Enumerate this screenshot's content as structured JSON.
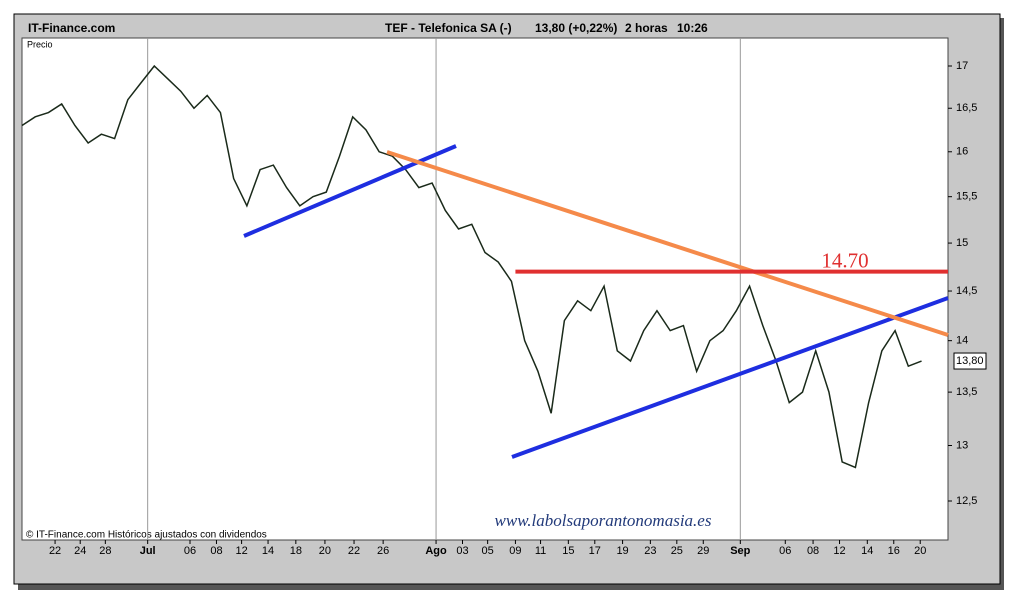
{
  "chart_data": {
    "type": "line",
    "header": {
      "source": "IT-Finance.com",
      "symbol": "TEF - Telefonica SA (-)",
      "quote": "13,80 (+0,22%)",
      "interval": "2 horas",
      "time": "10:26"
    },
    "y_label": "Precio",
    "footer": "© IT-Finance.com Históricos ajustados con dividendos",
    "watermark": "www.labolsaporantonomasia.es",
    "log_scale": true,
    "grid": "months",
    "xlim": [
      0,
      70
    ],
    "xticks": [
      {
        "value": 2.5,
        "label": "22"
      },
      {
        "value": 4.4,
        "label": "24"
      },
      {
        "value": 6.3,
        "label": "28"
      },
      {
        "value": 9.5,
        "label": "Jul"
      },
      {
        "value": 12.7,
        "label": "06"
      },
      {
        "value": 14.7,
        "label": "08"
      },
      {
        "value": 16.6,
        "label": "12"
      },
      {
        "value": 18.6,
        "label": "14"
      },
      {
        "value": 20.7,
        "label": "18"
      },
      {
        "value": 22.9,
        "label": "20"
      },
      {
        "value": 25.1,
        "label": "22"
      },
      {
        "value": 27.3,
        "label": "26"
      },
      {
        "value": 31.3,
        "label": "Ago"
      },
      {
        "value": 33.3,
        "label": "03"
      },
      {
        "value": 35.2,
        "label": "05"
      },
      {
        "value": 37.3,
        "label": "09"
      },
      {
        "value": 39.2,
        "label": "11"
      },
      {
        "value": 41.3,
        "label": "15"
      },
      {
        "value": 43.3,
        "label": "17"
      },
      {
        "value": 45.4,
        "label": "19"
      },
      {
        "value": 47.5,
        "label": "23"
      },
      {
        "value": 49.5,
        "label": "25"
      },
      {
        "value": 51.5,
        "label": "29"
      },
      {
        "value": 54.3,
        "label": "Sep"
      },
      {
        "value": 57.7,
        "label": "06"
      },
      {
        "value": 59.8,
        "label": "08"
      },
      {
        "value": 61.8,
        "label": "12"
      },
      {
        "value": 63.9,
        "label": "14"
      },
      {
        "value": 65.9,
        "label": "16"
      },
      {
        "value": 67.9,
        "label": "20"
      }
    ],
    "ylim": [
      12.16,
      17.34
    ],
    "yticks": [
      {
        "value": 12.5,
        "label": "12,5"
      },
      13,
      {
        "value": 13.5,
        "label": "13,5"
      },
      14,
      {
        "value": 14.5,
        "label": "14,5"
      },
      15,
      {
        "value": 15.5,
        "label": "15,5"
      },
      16,
      {
        "value": 16.5,
        "label": "16,5"
      },
      17
    ],
    "series": [
      {
        "name": "TEF",
        "color": "#1a2a1a",
        "x": [
          0,
          1,
          2,
          3,
          4,
          5,
          6,
          7,
          8,
          9,
          10,
          11,
          12,
          13,
          14,
          15,
          16,
          17,
          18,
          19,
          20,
          21,
          22,
          23,
          24,
          25,
          26,
          27,
          28,
          29,
          30,
          31,
          32,
          33,
          34,
          35,
          36,
          37,
          38,
          39,
          40,
          41,
          42,
          43,
          44,
          45,
          46,
          47,
          48,
          49,
          50,
          51,
          52,
          53,
          54,
          55,
          56,
          57,
          58,
          59,
          60,
          61,
          62,
          63,
          64,
          65,
          66,
          67,
          68
        ],
        "values": [
          16.3,
          16.4,
          16.45,
          16.55,
          16.3,
          16.1,
          16.2,
          16.15,
          16.6,
          16.8,
          17.0,
          16.85,
          16.7,
          16.5,
          16.65,
          16.45,
          15.7,
          15.4,
          15.8,
          15.85,
          15.6,
          15.4,
          15.5,
          15.55,
          15.95,
          16.4,
          16.25,
          16.0,
          15.95,
          15.8,
          15.6,
          15.65,
          15.35,
          15.15,
          15.2,
          14.9,
          14.8,
          14.6,
          14.0,
          13.7,
          13.3,
          14.2,
          14.4,
          14.3,
          14.55,
          13.9,
          13.8,
          14.1,
          14.3,
          14.1,
          14.15,
          13.7,
          14.0,
          14.1,
          14.3,
          14.55,
          14.15,
          13.8,
          13.4,
          13.5,
          13.9,
          13.5,
          12.85,
          12.8,
          13.4,
          13.9,
          14.1,
          13.75,
          13.8
        ]
      }
    ],
    "last_value": {
      "value": 13.8,
      "label": "13,80"
    },
    "annotations": [
      {
        "text": "14.70",
        "value": 14.7,
        "color": "#e03030"
      }
    ]
  }
}
